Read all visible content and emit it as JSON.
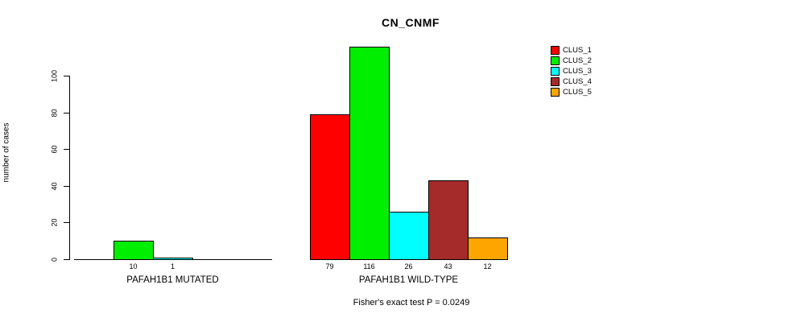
{
  "chart_data": {
    "type": "bar",
    "title": "CN_CNMF",
    "ylabel": "number of cases",
    "annotation": "Fisher's exact test P = 0.0249",
    "ylim": [
      0,
      100
    ],
    "yticks": [
      0,
      20,
      40,
      60,
      80,
      100
    ],
    "grid": false,
    "legend_position": "top-right",
    "legend": [
      {
        "label": "CLUS_1",
        "color": "#FF0000"
      },
      {
        "label": "CLUS_2",
        "color": "#00EE00"
      },
      {
        "label": "CLUS_3",
        "color": "#00FFFF"
      },
      {
        "label": "CLUS_4",
        "color": "#A52A2A"
      },
      {
        "label": "CLUS_5",
        "color": "#FFA500"
      }
    ],
    "categories": [
      "CLUS_1",
      "CLUS_2",
      "CLUS_3",
      "CLUS_4",
      "CLUS_5"
    ],
    "groups": [
      {
        "label": "PAFAH1B1 MUTATED",
        "values": [
          0,
          10,
          1,
          0,
          0
        ],
        "bar_labels": [
          "",
          "10",
          "1",
          "",
          ""
        ]
      },
      {
        "label": "PAFAH1B1 WILD-TYPE",
        "values": [
          79,
          116,
          26,
          43,
          12
        ],
        "bar_labels": [
          "79",
          "116",
          "26",
          "43",
          "12"
        ]
      }
    ]
  }
}
